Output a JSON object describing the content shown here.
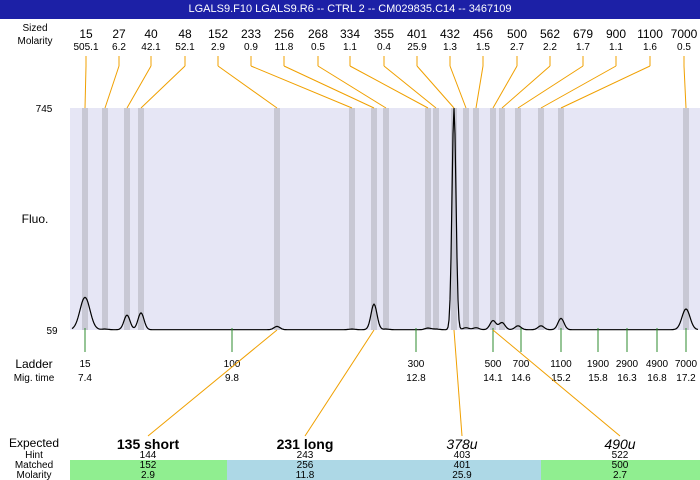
{
  "window_title": "LGALS9.F10  LGALS9.R6 -- CTRL 2 -- CM029835.C14 -- 3467109",
  "colors": {
    "title_bg": "#1c20a6",
    "plot_bg": "#e6e6f5",
    "peak_band": "#c8c8d4",
    "callout_line": "#f0a000",
    "ladder_tick": "#2e8b2e",
    "trace": "#000000",
    "row_green": "#90ee90",
    "row_blue": "#add8e6"
  },
  "chart_data": {
    "type": "line",
    "title": "LGALS9.F10  LGALS9.R6 -- CTRL 2 -- CM029835.C14 -- 3467109",
    "ylabel": "Fluo.",
    "y_ticks": [
      "745",
      "59"
    ],
    "ylim": [
      59,
      745
    ],
    "top_row_labels": [
      "Sized",
      "Molarity"
    ],
    "peaks": [
      {
        "size": "15",
        "molarity": "505.1"
      },
      {
        "size": "27",
        "molarity": "6.2"
      },
      {
        "size": "40",
        "molarity": "42.1"
      },
      {
        "size": "48",
        "molarity": "52.1"
      },
      {
        "size": "152",
        "molarity": "2.9"
      },
      {
        "size": "233",
        "molarity": "0.9"
      },
      {
        "size": "256",
        "molarity": "11.8"
      },
      {
        "size": "268",
        "molarity": "0.5"
      },
      {
        "size": "334",
        "molarity": "1.1"
      },
      {
        "size": "355",
        "molarity": "0.4"
      },
      {
        "size": "401",
        "molarity": "25.9"
      },
      {
        "size": "432",
        "molarity": "1.3"
      },
      {
        "size": "456",
        "molarity": "1.5"
      },
      {
        "size": "500",
        "molarity": "2.7"
      },
      {
        "size": "562",
        "molarity": "2.2"
      },
      {
        "size": "679",
        "molarity": "1.7"
      },
      {
        "size": "900",
        "molarity": "1.1"
      },
      {
        "size": "1100",
        "molarity": "1.6"
      },
      {
        "size": "7000",
        "molarity": "0.5"
      }
    ],
    "ladder_row_labels": [
      "Ladder",
      "Mig. time"
    ],
    "ladder": [
      {
        "size": "15",
        "mig_time": "7.4"
      },
      {
        "size": "100",
        "mig_time": "9.8"
      },
      {
        "size": "300",
        "mig_time": "12.8"
      },
      {
        "size": "500",
        "mig_time": "14.1"
      },
      {
        "size": "700",
        "mig_time": "14.6"
      },
      {
        "size": "1100",
        "mig_time": "15.2"
      },
      {
        "size": "1900",
        "mig_time": "15.8"
      },
      {
        "size": "2900",
        "mig_time": "16.3"
      },
      {
        "size": "4900",
        "mig_time": "16.8"
      },
      {
        "size": "7000",
        "mig_time": "17.2"
      }
    ],
    "expected_row_labels": [
      "Expected",
      "Hint",
      "Matched",
      "Molarity"
    ],
    "expected": [
      {
        "label": "135 short",
        "style": "bold",
        "hint": "144",
        "matched": "152",
        "molarity": "2.9",
        "row_color": "green"
      },
      {
        "label": "231 long",
        "style": "bold",
        "hint": "243",
        "matched": "256",
        "molarity": "11.8",
        "row_color": "blue"
      },
      {
        "label": "378u",
        "style": "italic",
        "hint": "403",
        "matched": "401",
        "molarity": "25.9",
        "row_color": "blue"
      },
      {
        "label": "490u",
        "style": "italic",
        "hint": "522",
        "matched": "500",
        "molarity": "2.7",
        "row_color": "green"
      }
    ]
  }
}
